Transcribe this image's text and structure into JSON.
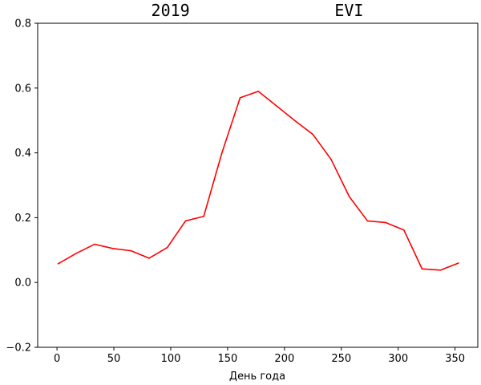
{
  "chart_data": {
    "type": "line",
    "title": "2019               EVI",
    "xlabel": "День года",
    "ylabel": "",
    "xlim": [
      -17,
      370
    ],
    "ylim": [
      -0.2,
      0.8
    ],
    "xticks": [
      0,
      50,
      100,
      150,
      200,
      250,
      300,
      350
    ],
    "yticks": [
      -0.2,
      0.0,
      0.2,
      0.4,
      0.6,
      0.8
    ],
    "xtick_labels": [
      "0",
      "50",
      "100",
      "150",
      "200",
      "250",
      "300",
      "350"
    ],
    "ytick_labels": [
      "−0.2",
      "0.0",
      "0.2",
      "0.4",
      "0.6",
      "0.8"
    ],
    "grid": false,
    "series": [
      {
        "color": "#ff0000",
        "x": [
          1,
          17,
          33,
          49,
          65,
          81,
          97,
          113,
          129,
          145,
          161,
          177,
          193,
          209,
          225,
          241,
          257,
          273,
          289,
          305,
          321,
          337,
          353
        ],
        "y": [
          0.058,
          0.09,
          0.118,
          0.105,
          0.098,
          0.075,
          0.108,
          0.19,
          0.204,
          0.4,
          0.57,
          0.59,
          0.545,
          0.5,
          0.457,
          0.38,
          0.265,
          0.19,
          0.185,
          0.162,
          0.042,
          0.038,
          0.06
        ]
      }
    ]
  }
}
